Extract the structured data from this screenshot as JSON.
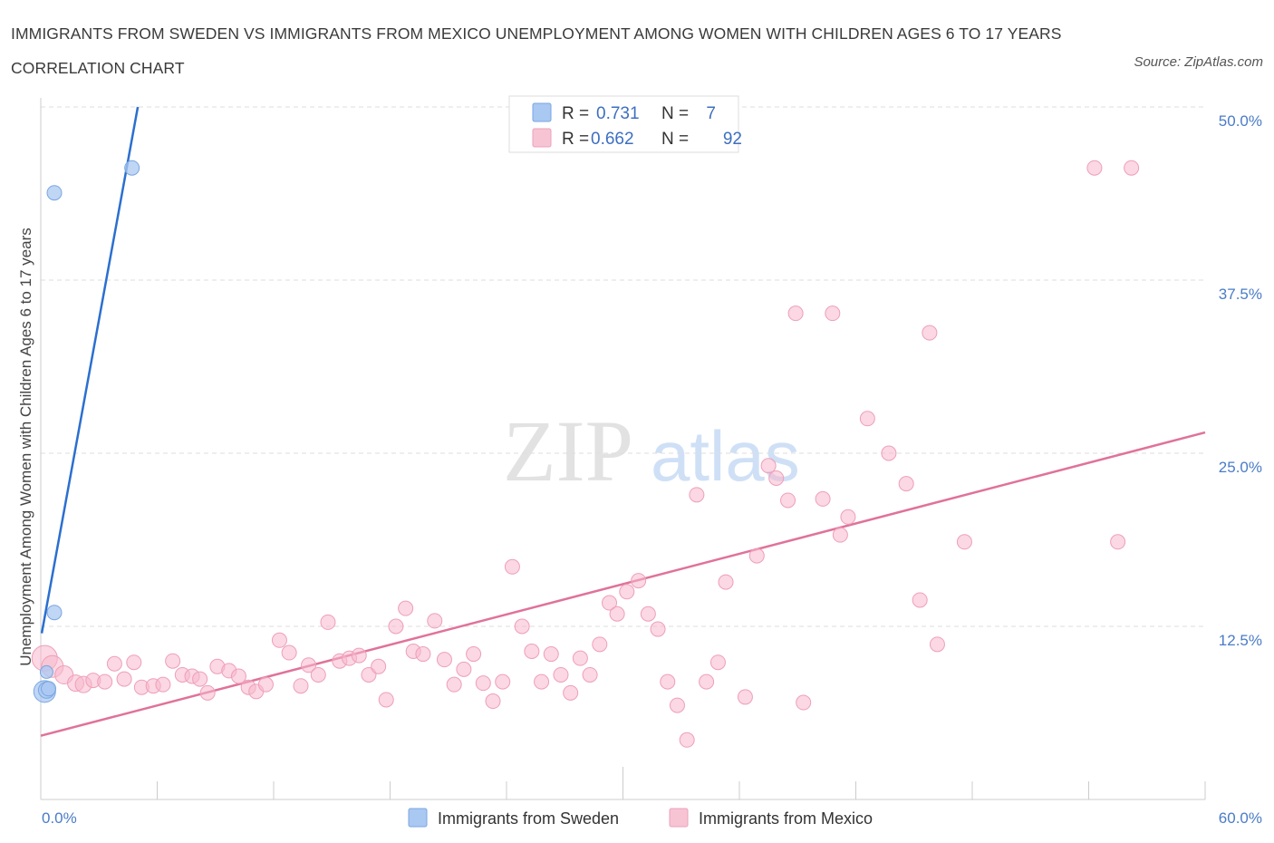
{
  "header": {
    "title": "IMMIGRANTS FROM SWEDEN VS IMMIGRANTS FROM MEXICO UNEMPLOYMENT AMONG WOMEN WITH CHILDREN AGES 6 TO 17 YEARS CORRELATION CHART",
    "source": "Source: ZipAtlas.com"
  },
  "watermark": {
    "zip": "ZIP",
    "atlas": "atlas"
  },
  "colors": {
    "sweden": "#a9c8f2",
    "sweden_line": "#2b6fd0",
    "mexico": "#f7b8cc",
    "mexico_line": "#e0729a",
    "axis_text": "#4a7cc7",
    "grid": "#dddddd"
  },
  "legend": {
    "rows": [
      {
        "r_label": "R =",
        "r_value": "0.731",
        "n_label": "N =",
        "n_value": "7"
      },
      {
        "r_label": "R =",
        "r_value": "0.662",
        "n_label": "N =",
        "n_value": "92"
      }
    ]
  },
  "chart_data": {
    "type": "scatter",
    "title": "IMMIGRANTS FROM SWEDEN VS IMMIGRANTS FROM MEXICO UNEMPLOYMENT AMONG WOMEN WITH CHILDREN AGES 6 TO 17 YEARS CORRELATION CHART",
    "xlabel": "",
    "ylabel": "Unemployment Among Women with Children Ages 6 to 17 years",
    "xlim": [
      0,
      60
    ],
    "ylim": [
      0,
      50
    ],
    "x_tick_labels": [
      "0.0%",
      "60.0%"
    ],
    "y_ticks": [
      12.5,
      25.0,
      37.5,
      50.0
    ],
    "y_tick_labels": [
      "12.5%",
      "25.0%",
      "37.5%",
      "50.0%"
    ],
    "grid": true,
    "legend_position": "top-center",
    "series": [
      {
        "name": "Immigrants from Sweden",
        "R": 0.731,
        "N": 7,
        "trendline": [
          [
            0.05,
            12.0
          ],
          [
            5.0,
            50.0
          ]
        ],
        "points": [
          {
            "x": 0.2,
            "y": 7.8,
            "size": 12
          },
          {
            "x": 0.3,
            "y": 7.9,
            "size": 9
          },
          {
            "x": 0.4,
            "y": 8.0,
            "size": 8
          },
          {
            "x": 0.3,
            "y": 9.2,
            "size": 7
          },
          {
            "x": 0.7,
            "y": 13.5,
            "size": 8
          },
          {
            "x": 0.7,
            "y": 43.8,
            "size": 8
          },
          {
            "x": 4.7,
            "y": 45.6,
            "size": 8
          }
        ]
      },
      {
        "name": "Immigrants from Mexico",
        "R": 0.662,
        "N": 92,
        "trendline": [
          [
            0,
            4.6
          ],
          [
            60,
            26.5
          ]
        ],
        "points": [
          {
            "x": 0.2,
            "y": 10.2,
            "size": 14
          },
          {
            "x": 0.6,
            "y": 9.6,
            "size": 12
          },
          {
            "x": 1.2,
            "y": 9.0,
            "size": 10
          },
          {
            "x": 1.8,
            "y": 8.4,
            "size": 9
          },
          {
            "x": 2.2,
            "y": 8.3,
            "size": 9
          },
          {
            "x": 2.7,
            "y": 8.6,
            "size": 8
          },
          {
            "x": 3.3,
            "y": 8.5,
            "size": 8
          },
          {
            "x": 3.8,
            "y": 9.8,
            "size": 8
          },
          {
            "x": 4.3,
            "y": 8.7,
            "size": 8
          },
          {
            "x": 4.8,
            "y": 9.9,
            "size": 8
          },
          {
            "x": 5.2,
            "y": 8.1,
            "size": 8
          },
          {
            "x": 5.8,
            "y": 8.2,
            "size": 8
          },
          {
            "x": 6.3,
            "y": 8.3,
            "size": 8
          },
          {
            "x": 6.8,
            "y": 10.0,
            "size": 8
          },
          {
            "x": 7.3,
            "y": 9.0,
            "size": 8
          },
          {
            "x": 7.8,
            "y": 8.9,
            "size": 8
          },
          {
            "x": 8.2,
            "y": 8.7,
            "size": 8
          },
          {
            "x": 8.6,
            "y": 7.7,
            "size": 8
          },
          {
            "x": 9.1,
            "y": 9.6,
            "size": 8
          },
          {
            "x": 9.7,
            "y": 9.3,
            "size": 8
          },
          {
            "x": 10.2,
            "y": 8.9,
            "size": 8
          },
          {
            "x": 10.7,
            "y": 8.1,
            "size": 8
          },
          {
            "x": 11.1,
            "y": 7.8,
            "size": 8
          },
          {
            "x": 11.6,
            "y": 8.3,
            "size": 8
          },
          {
            "x": 12.3,
            "y": 11.5,
            "size": 8
          },
          {
            "x": 12.8,
            "y": 10.6,
            "size": 8
          },
          {
            "x": 13.4,
            "y": 8.2,
            "size": 8
          },
          {
            "x": 13.8,
            "y": 9.7,
            "size": 8
          },
          {
            "x": 14.3,
            "y": 9.0,
            "size": 8
          },
          {
            "x": 14.8,
            "y": 12.8,
            "size": 8
          },
          {
            "x": 15.4,
            "y": 10.0,
            "size": 8
          },
          {
            "x": 15.9,
            "y": 10.2,
            "size": 8
          },
          {
            "x": 16.4,
            "y": 10.4,
            "size": 8
          },
          {
            "x": 16.9,
            "y": 9.0,
            "size": 8
          },
          {
            "x": 17.4,
            "y": 9.6,
            "size": 8
          },
          {
            "x": 17.8,
            "y": 7.2,
            "size": 8
          },
          {
            "x": 18.3,
            "y": 12.5,
            "size": 8
          },
          {
            "x": 18.8,
            "y": 13.8,
            "size": 8
          },
          {
            "x": 19.2,
            "y": 10.7,
            "size": 8
          },
          {
            "x": 19.7,
            "y": 10.5,
            "size": 8
          },
          {
            "x": 20.3,
            "y": 12.9,
            "size": 8
          },
          {
            "x": 20.8,
            "y": 10.1,
            "size": 8
          },
          {
            "x": 21.3,
            "y": 8.3,
            "size": 8
          },
          {
            "x": 21.8,
            "y": 9.4,
            "size": 8
          },
          {
            "x": 22.3,
            "y": 10.5,
            "size": 8
          },
          {
            "x": 22.8,
            "y": 8.4,
            "size": 8
          },
          {
            "x": 23.3,
            "y": 7.1,
            "size": 8
          },
          {
            "x": 23.8,
            "y": 8.5,
            "size": 8
          },
          {
            "x": 24.3,
            "y": 16.8,
            "size": 8
          },
          {
            "x": 24.8,
            "y": 12.5,
            "size": 8
          },
          {
            "x": 25.3,
            "y": 10.7,
            "size": 8
          },
          {
            "x": 25.8,
            "y": 8.5,
            "size": 8
          },
          {
            "x": 26.3,
            "y": 10.5,
            "size": 8
          },
          {
            "x": 26.8,
            "y": 9.0,
            "size": 8
          },
          {
            "x": 27.3,
            "y": 7.7,
            "size": 8
          },
          {
            "x": 27.8,
            "y": 10.2,
            "size": 8
          },
          {
            "x": 28.3,
            "y": 9.0,
            "size": 8
          },
          {
            "x": 28.8,
            "y": 11.2,
            "size": 8
          },
          {
            "x": 29.3,
            "y": 14.2,
            "size": 8
          },
          {
            "x": 29.7,
            "y": 13.4,
            "size": 8
          },
          {
            "x": 30.2,
            "y": 15.0,
            "size": 8
          },
          {
            "x": 30.8,
            "y": 15.8,
            "size": 8
          },
          {
            "x": 31.3,
            "y": 13.4,
            "size": 8
          },
          {
            "x": 31.8,
            "y": 12.3,
            "size": 8
          },
          {
            "x": 32.3,
            "y": 8.5,
            "size": 8
          },
          {
            "x": 32.8,
            "y": 6.8,
            "size": 8
          },
          {
            "x": 33.3,
            "y": 4.3,
            "size": 8
          },
          {
            "x": 33.8,
            "y": 22.0,
            "size": 8
          },
          {
            "x": 34.3,
            "y": 8.5,
            "size": 8
          },
          {
            "x": 34.9,
            "y": 9.9,
            "size": 8
          },
          {
            "x": 35.3,
            "y": 15.7,
            "size": 8
          },
          {
            "x": 36.3,
            "y": 7.4,
            "size": 8
          },
          {
            "x": 36.9,
            "y": 17.6,
            "size": 8
          },
          {
            "x": 37.5,
            "y": 24.1,
            "size": 8
          },
          {
            "x": 37.9,
            "y": 23.2,
            "size": 8
          },
          {
            "x": 38.5,
            "y": 21.6,
            "size": 8
          },
          {
            "x": 38.9,
            "y": 35.1,
            "size": 8
          },
          {
            "x": 39.3,
            "y": 7.0,
            "size": 8
          },
          {
            "x": 40.3,
            "y": 21.7,
            "size": 8
          },
          {
            "x": 40.8,
            "y": 35.1,
            "size": 8
          },
          {
            "x": 41.2,
            "y": 19.1,
            "size": 8
          },
          {
            "x": 41.6,
            "y": 20.4,
            "size": 8
          },
          {
            "x": 42.6,
            "y": 27.5,
            "size": 8
          },
          {
            "x": 43.7,
            "y": 25.0,
            "size": 8
          },
          {
            "x": 44.6,
            "y": 22.8,
            "size": 8
          },
          {
            "x": 45.3,
            "y": 14.4,
            "size": 8
          },
          {
            "x": 45.8,
            "y": 33.7,
            "size": 8
          },
          {
            "x": 46.2,
            "y": 11.2,
            "size": 8
          },
          {
            "x": 47.6,
            "y": 18.6,
            "size": 8
          },
          {
            "x": 54.3,
            "y": 45.6,
            "size": 8
          },
          {
            "x": 55.5,
            "y": 18.6,
            "size": 8
          },
          {
            "x": 56.2,
            "y": 45.6,
            "size": 8
          }
        ]
      }
    ]
  }
}
